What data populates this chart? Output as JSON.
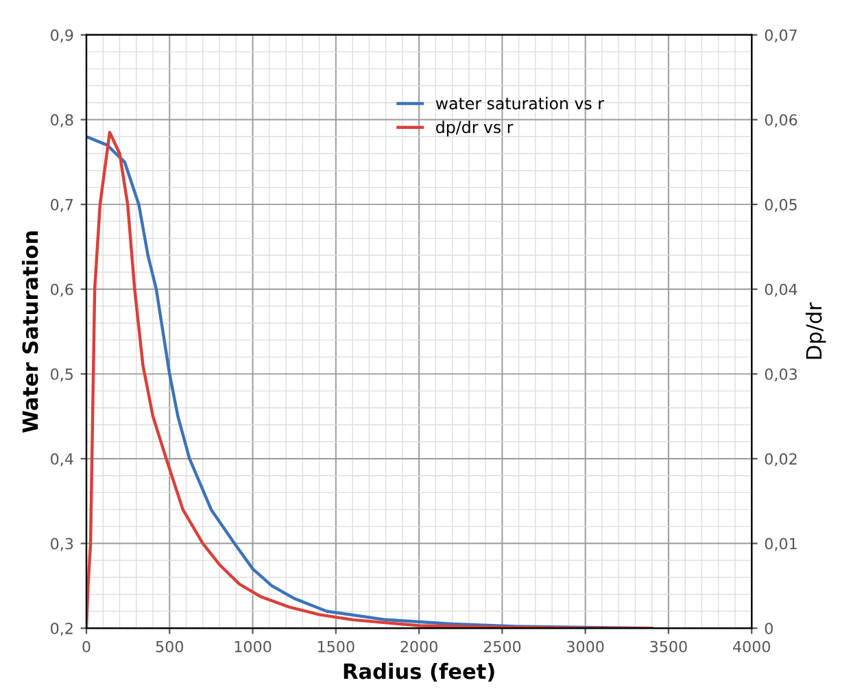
{
  "chart_data": {
    "type": "line",
    "xlabel": "Radius (feet)",
    "ylabel": "Water Saturation",
    "y2label": "Dp/dr",
    "xlim": [
      0,
      4000
    ],
    "xticks": [
      0,
      500,
      1000,
      1500,
      2000,
      2500,
      3000,
      3500,
      4000
    ],
    "ylim": [
      0.2,
      0.9
    ],
    "yticks": [
      {
        "value": 0.2,
        "label": "0,2"
      },
      {
        "value": 0.3,
        "label": "0,3"
      },
      {
        "value": 0.4,
        "label": "0,4"
      },
      {
        "value": 0.5,
        "label": "0,5"
      },
      {
        "value": 0.6,
        "label": "0,6"
      },
      {
        "value": 0.7,
        "label": "0,7"
      },
      {
        "value": 0.8,
        "label": "0,8"
      },
      {
        "value": 0.9,
        "label": "0,9"
      }
    ],
    "y2lim": [
      0,
      0.07
    ],
    "y2ticks": [
      0,
      {
        "value": 0.01,
        "label": "0,01"
      },
      {
        "value": 0.02,
        "label": "0,02"
      },
      {
        "value": 0.03,
        "label": "0,03"
      },
      {
        "value": 0.04,
        "label": "0,04"
      },
      {
        "value": 0.05,
        "label": "0,05"
      },
      {
        "value": 0.06,
        "label": "0,06"
      },
      {
        "value": 0.07,
        "label": "0,07"
      }
    ],
    "grid": true,
    "legend": "top right",
    "marker": "none",
    "line_style": "solid",
    "series": [
      {
        "name": "water saturation vs r",
        "color": "#3d72b8",
        "x": [
          0,
          125,
          230,
          315,
          370,
          420,
          500,
          550,
          620,
          750,
          890,
          1000,
          1115,
          1250,
          1445,
          1800,
          2200,
          2600,
          3000,
          3400
        ],
        "values": [
          0.78,
          0.77,
          0.75,
          0.7,
          0.64,
          0.6,
          0.5,
          0.45,
          0.4,
          0.34,
          0.3,
          0.27,
          0.25,
          0.235,
          0.22,
          0.21,
          0.205,
          0.202,
          0.201,
          0.2
        ]
      },
      {
        "name": "dp/dr vs r",
        "color": "#d9403a",
        "axis": "y2",
        "x": [
          0,
          10,
          25,
          50,
          82,
          140,
          200,
          248,
          290,
          340,
          400,
          480,
          580,
          700,
          800,
          920,
          1050,
          1220,
          1400,
          1600,
          2000,
          2500,
          3000,
          3400
        ],
        "values": [
          0,
          0.005,
          0.01,
          0.04,
          0.05,
          0.0585,
          0.056,
          0.05,
          0.04,
          0.031,
          0.025,
          0.02,
          0.014,
          0.01,
          0.0075,
          0.0052,
          0.0037,
          0.0025,
          0.0016,
          0.001,
          0.0003,
          0.0001,
          0,
          0
        ]
      }
    ]
  }
}
